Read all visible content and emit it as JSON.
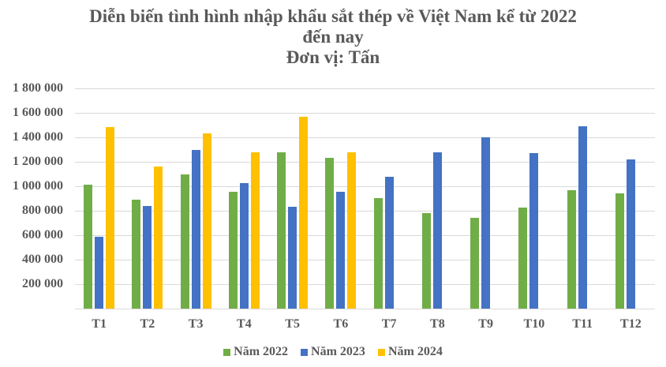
{
  "chart_data": {
    "type": "bar",
    "title": "Diễn biến tình hình nhập khẩu sắt thép về Việt Nam kể từ 2022 đến nay",
    "title_lines": [
      "Diễn biến tình hình nhập khẩu sắt thép về Việt Nam kể từ 2022",
      "đến nay",
      "Đơn vị: Tấn"
    ],
    "subtitle": "Đơn vị: Tấn",
    "xlabel": "",
    "ylabel": "",
    "ylim": [
      0,
      1800000
    ],
    "yticks": [
      "",
      "200 000",
      "400 000",
      "600 000",
      "800 000",
      "1 000 000",
      "1 200 000",
      "1 400 000",
      "1 600 000",
      "1 800 000"
    ],
    "ytick_values": [
      0,
      200000,
      400000,
      600000,
      800000,
      1000000,
      1200000,
      1400000,
      1600000,
      1800000
    ],
    "grid": true,
    "legend_position": "bottom",
    "categories": [
      "T1",
      "T2",
      "T3",
      "T4",
      "T5",
      "T6",
      "T7",
      "T8",
      "T9",
      "T10",
      "T11",
      "T12"
    ],
    "series": [
      {
        "name": "Năm 2022",
        "color": "#70AD47",
        "values": [
          1013000,
          890000,
          1099000,
          955000,
          1279000,
          1234000,
          905000,
          783000,
          744000,
          828000,
          970000,
          944000
        ]
      },
      {
        "name": "Năm 2023",
        "color": "#4472C4",
        "values": [
          587000,
          840000,
          1299000,
          1026000,
          832000,
          955000,
          1079000,
          1279000,
          1402000,
          1273000,
          1492000,
          1221000
        ]
      },
      {
        "name": "Năm 2024",
        "color": "#FFC000",
        "values": [
          1486000,
          1163000,
          1434000,
          1279000,
          1570000,
          1279000,
          null,
          null,
          null,
          null,
          null,
          null
        ]
      }
    ]
  }
}
